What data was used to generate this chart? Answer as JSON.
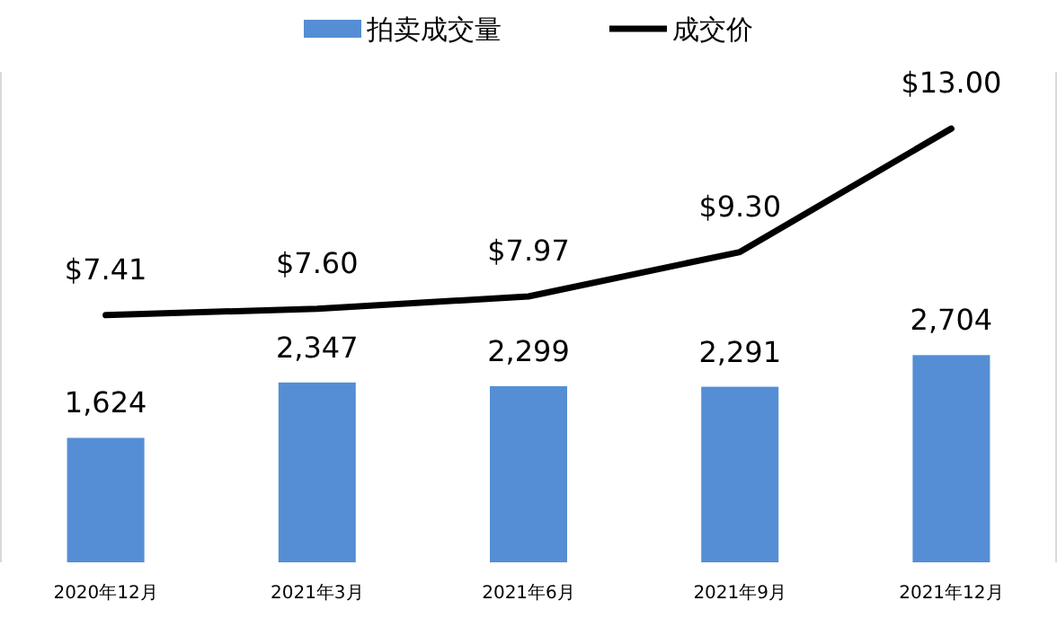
{
  "chart_data": {
    "type": "bar",
    "categories": [
      "2020年12月",
      "2021年3月",
      "2021年6月",
      "2021年9月",
      "2021年12月"
    ],
    "series": [
      {
        "name": "拍卖成交量",
        "color": "#558ed5",
        "values": [
          1624,
          2347,
          2299,
          2291,
          2704
        ],
        "value_labels": [
          "1,624",
          "2,347",
          "2,299",
          "2,291",
          "2,704"
        ]
      },
      {
        "name": "成交价",
        "type": "line",
        "axis": "y2",
        "color": "#000000",
        "values": [
          7.41,
          7.6,
          7.97,
          9.3,
          13.0
        ],
        "value_labels": [
          "$7.41",
          "$7.60",
          "$7.97",
          "$9.30",
          "$13.00"
        ]
      }
    ],
    "ylim": [
      0,
      6400
    ],
    "y2lim": [
      0,
      14.7
    ],
    "legend": "top"
  }
}
